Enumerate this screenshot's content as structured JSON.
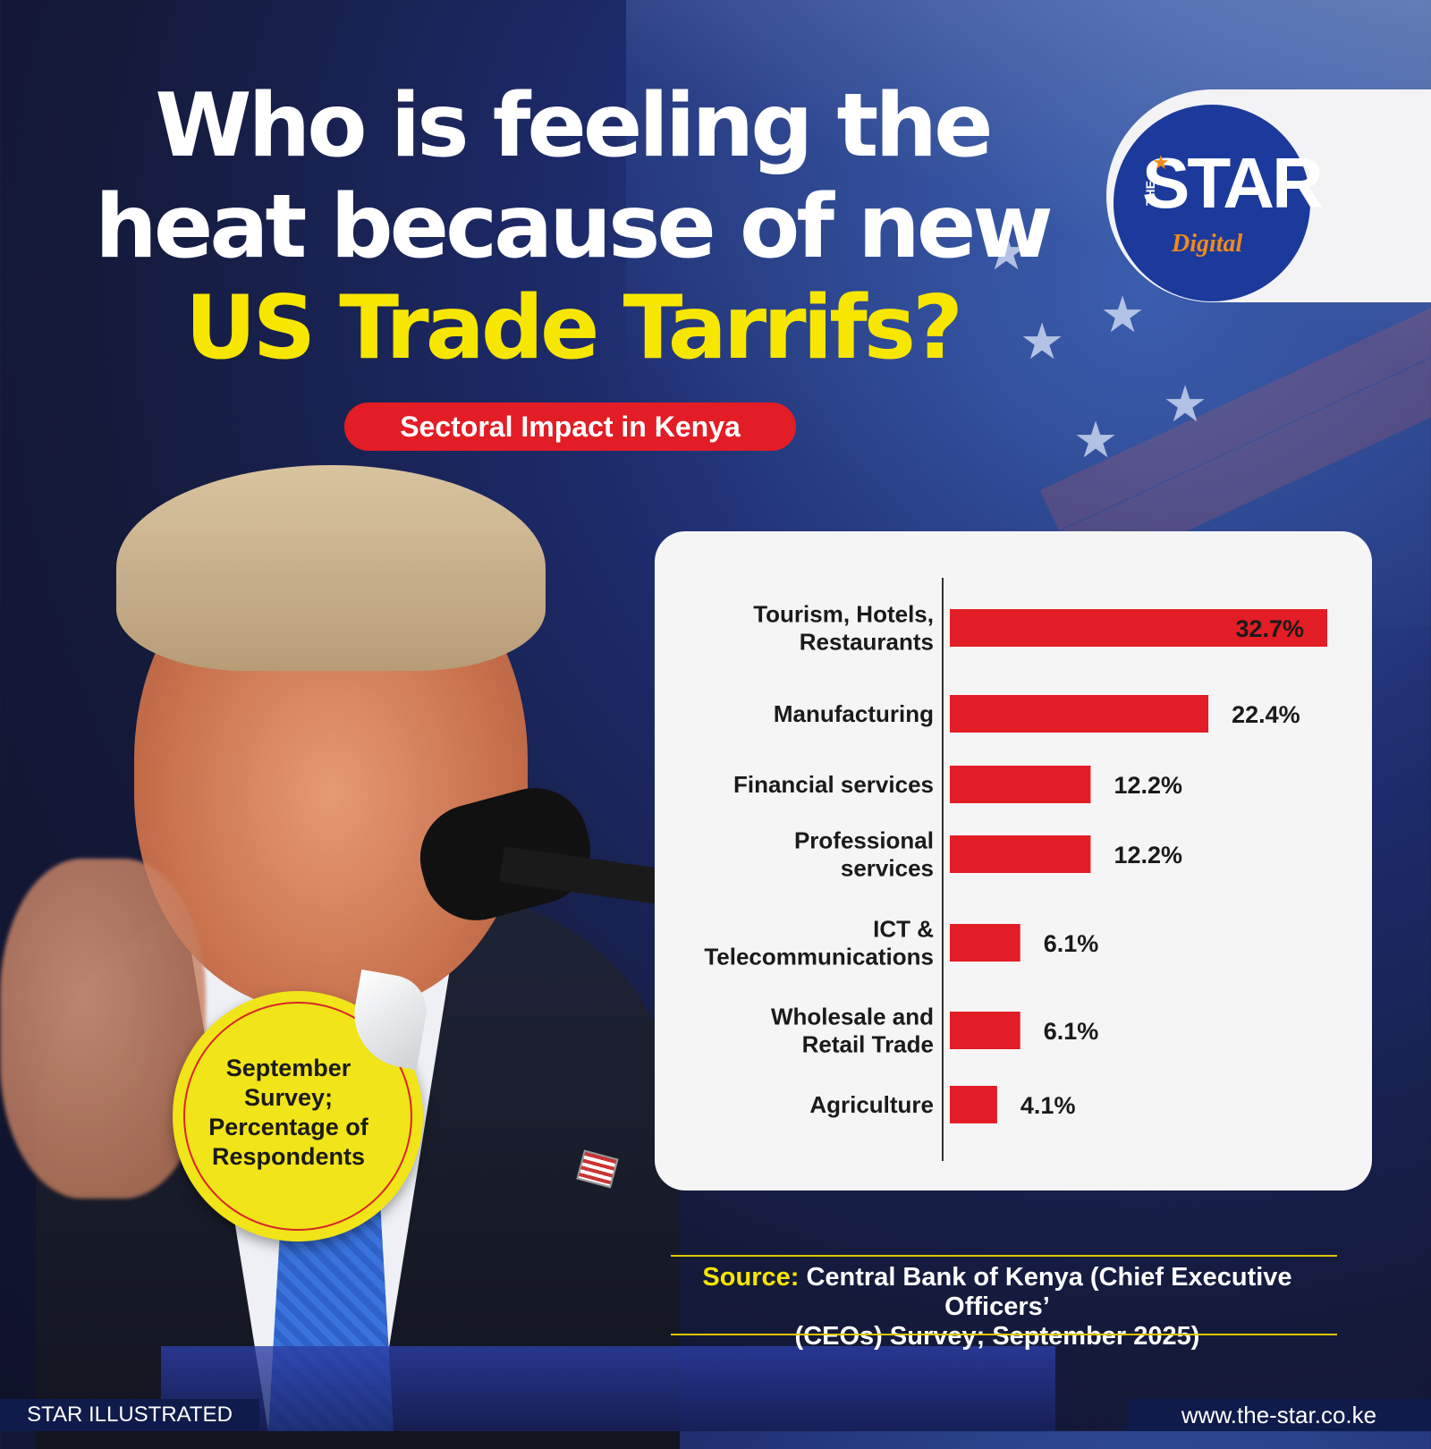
{
  "header": {
    "title_line1": "Who is feeling the",
    "title_line2": "heat because of new",
    "title_line3": "US Trade Tarrifs?",
    "subtitle": "Sectoral Impact in Kenya"
  },
  "logo": {
    "the": "THE",
    "star": "STAR",
    "digital": "Digital"
  },
  "sticker": {
    "line1": "September",
    "line2": "Survey;",
    "line3": "Percentage of",
    "line4": "Respondents"
  },
  "source": {
    "label": "Source:",
    "text_line1": " Central Bank of Kenya (Chief Executive Officers’",
    "text_line2": "(CEOs) Survey; September 2025)"
  },
  "footer": {
    "left": "STAR ILLUSTRATED",
    "right": "www.the-star.co.ke"
  },
  "colors": {
    "bar": "#e31d25",
    "accent_yellow": "#f7e600",
    "brand_blue": "#1c3a9c"
  },
  "chart_data": {
    "type": "bar",
    "orientation": "horizontal",
    "categories": [
      "Tourism, Hotels, Restaurants",
      "Manufacturing",
      "Financial services",
      "Professional services",
      "ICT & Telecommunications",
      "Wholesale and Retail Trade",
      "Agriculture"
    ],
    "category_label_lines": [
      [
        "Tourism, Hotels,",
        "Restaurants"
      ],
      [
        "Manufacturing"
      ],
      [
        "Financial services"
      ],
      [
        "Professional",
        "services"
      ],
      [
        "ICT &",
        "Telecommunications"
      ],
      [
        "Wholesale and",
        "Retail Trade"
      ],
      [
        "Agriculture"
      ]
    ],
    "values": [
      32.7,
      22.4,
      12.2,
      12.2,
      6.1,
      6.1,
      4.1
    ],
    "value_labels": [
      "32.7%",
      "22.4%",
      "12.2%",
      "12.2%",
      "6.1%",
      "6.1%",
      "4.1%"
    ],
    "unit": "%",
    "xlim": [
      0,
      32.7
    ],
    "grid": false,
    "legend": "none"
  }
}
